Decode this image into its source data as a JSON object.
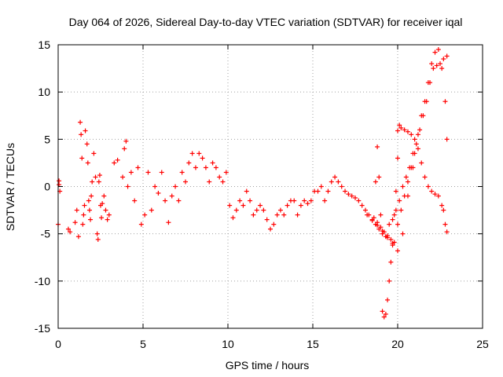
{
  "chart_data": {
    "type": "scatter",
    "title": "Day 064 of 2026, Sidereal Day-to-day VTEC variation (SDTVAR) for receiver iqal",
    "xlabel": "GPS time / hours",
    "ylabel": "SDTVAR / TECUs",
    "xlim": [
      0,
      25
    ],
    "ylim": [
      -15,
      15
    ],
    "xticks": [
      0,
      5,
      10,
      15,
      20,
      25
    ],
    "yticks": [
      -15,
      -10,
      -5,
      0,
      5,
      10,
      15
    ],
    "grid": true,
    "marker": "plus",
    "color": "#ff0000",
    "series": [
      {
        "name": "SDTVAR",
        "x": [
          0.0,
          0.1,
          0.05,
          0.05,
          0.6,
          0.7,
          1.0,
          1.1,
          1.2,
          1.3,
          1.35,
          1.4,
          1.45,
          1.5,
          1.55,
          1.6,
          1.7,
          1.75,
          1.8,
          1.85,
          1.9,
          1.95,
          2.0,
          2.1,
          2.2,
          2.3,
          2.35,
          2.4,
          2.45,
          2.5,
          2.55,
          2.6,
          2.7,
          2.8,
          2.9,
          3.0,
          3.3,
          3.5,
          3.8,
          3.9,
          4.0,
          4.1,
          4.3,
          4.5,
          4.7,
          4.9,
          5.1,
          5.3,
          5.5,
          5.7,
          5.9,
          6.1,
          6.3,
          6.5,
          6.7,
          6.9,
          7.1,
          7.3,
          7.5,
          7.7,
          7.9,
          8.1,
          8.3,
          8.5,
          8.7,
          8.9,
          9.1,
          9.3,
          9.5,
          9.7,
          9.9,
          10.1,
          10.3,
          10.5,
          10.7,
          10.9,
          11.1,
          11.3,
          11.5,
          11.7,
          11.9,
          12.1,
          12.3,
          12.5,
          12.7,
          12.9,
          13.1,
          13.3,
          13.5,
          13.7,
          13.9,
          14.1,
          14.3,
          14.5,
          14.7,
          14.9,
          15.1,
          15.3,
          15.5,
          15.7,
          15.9,
          16.1,
          16.3,
          16.5,
          16.7,
          16.9,
          17.1,
          17.3,
          17.5,
          17.7,
          17.9,
          18.1,
          18.3,
          18.5,
          18.7,
          18.9,
          19.1,
          19.3,
          19.5,
          19.7,
          19.9,
          20.1,
          20.3,
          20.5,
          20.7,
          20.9,
          21.1,
          21.3,
          21.5,
          21.7,
          21.9,
          22.1,
          22.3,
          22.5,
          22.7,
          22.9,
          18.2,
          18.5,
          18.8,
          19.1,
          19.4,
          19.7,
          20.0,
          20.3,
          20.6,
          20.9,
          18.7,
          18.8,
          18.9,
          19.0,
          19.1,
          19.2,
          19.3,
          19.4,
          19.5,
          19.6,
          19.7,
          19.8,
          19.9,
          20.0,
          20.1,
          18.6,
          18.8,
          19.0,
          19.2,
          19.4,
          19.6,
          19.8,
          20.0,
          20.2,
          20.4,
          20.6,
          20.8,
          21.0,
          21.2,
          21.4,
          21.6,
          21.8,
          22.0,
          22.2,
          22.4,
          22.6,
          22.8,
          22.9,
          20.0,
          20.2,
          20.4,
          20.6,
          20.8,
          21.0,
          21.2,
          21.4,
          21.6,
          21.8,
          22.0,
          22.2,
          22.4,
          22.6,
          22.7,
          22.8,
          22.9
        ],
        "y": [
          -4.0,
          -0.5,
          0.2,
          0.6,
          -4.5,
          -4.8,
          -3.8,
          -2.5,
          -5.3,
          6.8,
          5.5,
          3.0,
          -4.0,
          -3.0,
          -2.0,
          5.9,
          4.5,
          2.5,
          -1.5,
          -2.5,
          -3.5,
          -1.0,
          0.5,
          3.5,
          1.0,
          -5.0,
          -5.6,
          0.5,
          1.2,
          -2.0,
          -3.3,
          -1.8,
          -1.0,
          -2.5,
          -3.5,
          -3.0,
          2.5,
          2.8,
          1.0,
          4.0,
          4.8,
          0.0,
          1.5,
          -1.5,
          2.0,
          -4.0,
          -3.0,
          1.5,
          -2.5,
          0.0,
          -0.7,
          1.5,
          -1.5,
          -3.8,
          -1.0,
          0.0,
          -1.5,
          1.5,
          0.5,
          2.5,
          3.5,
          2.0,
          3.5,
          3.0,
          2.0,
          0.5,
          2.5,
          2.0,
          1.0,
          0.5,
          1.5,
          -2.0,
          -3.3,
          -2.5,
          -1.5,
          -2.0,
          -0.5,
          -1.5,
          -3.0,
          -2.5,
          -2.0,
          -2.5,
          -3.5,
          -4.5,
          -4.0,
          -3.0,
          -2.5,
          -3.0,
          -2.0,
          -1.5,
          -1.5,
          -3.0,
          -2.0,
          -1.5,
          -1.8,
          -1.5,
          -0.5,
          -0.5,
          0.0,
          -1.5,
          -0.5,
          0.5,
          1.0,
          0.5,
          0.0,
          -0.5,
          -0.8,
          -1.0,
          -1.2,
          -1.5,
          -2.0,
          -2.5,
          -3.0,
          -3.5,
          -4.0,
          -4.5,
          -5.0,
          -5.3,
          -4.0,
          -3.5,
          -2.5,
          -1.5,
          0.0,
          1.0,
          2.0,
          3.5,
          4.5,
          6.0,
          7.5,
          9.0,
          11.0,
          12.5,
          12.8,
          13.0,
          13.5,
          13.8,
          -3.0,
          -3.6,
          -4.1,
          -4.7,
          -5.4,
          -6.2,
          -6.8,
          -5.0,
          -1.0,
          2.0,
          0.5,
          4.2,
          1.0,
          -3.0,
          -13.2,
          -13.8,
          -13.5,
          -12.0,
          -10.0,
          -8.0,
          -6.0,
          -3.0,
          -0.5,
          3.0,
          6.5,
          -3.3,
          -3.8,
          -4.3,
          -4.8,
          -5.2,
          -5.6,
          -5.9,
          -4.0,
          -2.5,
          -1.0,
          0.5,
          2.0,
          3.5,
          5.5,
          7.5,
          9.0,
          11.0,
          13.0,
          14.2,
          14.5,
          12.5,
          9.0,
          5.0,
          5.9,
          6.2,
          6.0,
          5.8,
          5.5,
          5.0,
          4.0,
          2.5,
          1.0,
          0.0,
          -0.5,
          -0.8,
          -1.0,
          -2.0,
          -2.5,
          -4.0,
          -4.8
        ]
      }
    ]
  }
}
